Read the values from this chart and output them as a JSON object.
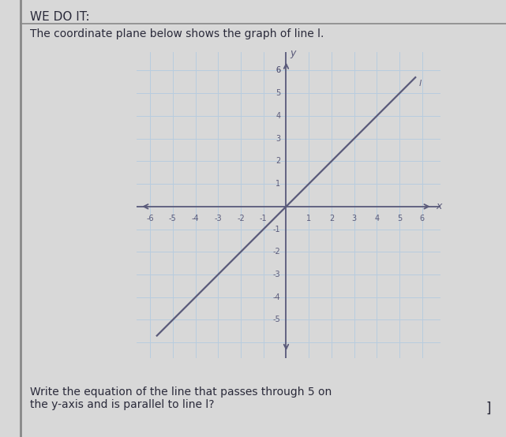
{
  "title_top": "WE DO IT:",
  "subtitle": "The coordinate plane below shows the graph of line l.",
  "question": "Write the equation of the line that passes through 5 on\nthe y-axis and is parallel to line l?",
  "xmin": -6,
  "xmax": 6,
  "ymin": -6,
  "ymax": 6,
  "grid_ticks": [
    -6,
    -5,
    -4,
    -3,
    -2,
    -1,
    0,
    1,
    2,
    3,
    4,
    5,
    6
  ],
  "xtick_labels": [
    "-6",
    "-5",
    "-4",
    "-3",
    "-2",
    "-1",
    "",
    "1",
    "2",
    "3",
    "4",
    "5",
    "6"
  ],
  "ytick_labels": [
    "",
    "-5",
    "-4",
    "-3",
    "-2",
    "-1",
    "",
    "1",
    "2",
    "3",
    "4",
    "5",
    "6"
  ],
  "line_slope": 1,
  "line_intercept": 0,
  "line_x_start": -5.7,
  "line_x_end": 5.7,
  "line_color": "#5a5a7a",
  "axis_color": "#5a5a7a",
  "grid_color": "#b8ccdf",
  "bg_color": "#dde8f3",
  "outer_bg": "#d8d8d8",
  "text_color": "#2a2a3a",
  "border_color": "#888888",
  "font_size_title": 11,
  "font_size_subtitle": 10,
  "font_size_question": 10,
  "tick_label_fontsize": 7,
  "axis_label_fontsize": 9,
  "line_label": "l",
  "x_label": "x",
  "y_label": "y"
}
